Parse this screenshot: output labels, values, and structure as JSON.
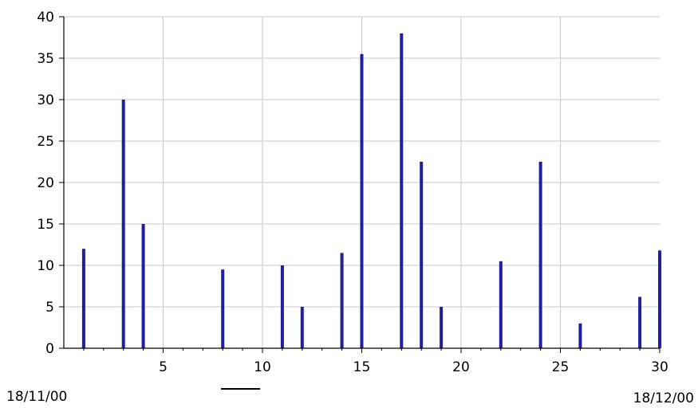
{
  "chart_data": {
    "type": "bar",
    "x": [
      1,
      3,
      4,
      8,
      11,
      12,
      14,
      15,
      17,
      18,
      19,
      22,
      24,
      26,
      29,
      30
    ],
    "values": [
      12,
      30,
      15,
      9.5,
      10,
      5,
      11.5,
      35.5,
      38,
      22.5,
      5,
      10.5,
      22.5,
      3,
      6.2,
      11.8
    ],
    "xlim": [
      0,
      30
    ],
    "ylim": [
      0,
      40
    ],
    "x_ticks": [
      5,
      10,
      15,
      20,
      25,
      30
    ],
    "y_ticks": [
      0,
      5,
      10,
      15,
      20,
      25,
      30,
      35,
      40
    ],
    "grid": true,
    "bar_color": "#1f1fa0",
    "grid_color": "#c8c8c8",
    "start_date": "18/11/00",
    "end_date": "18/12/00"
  }
}
